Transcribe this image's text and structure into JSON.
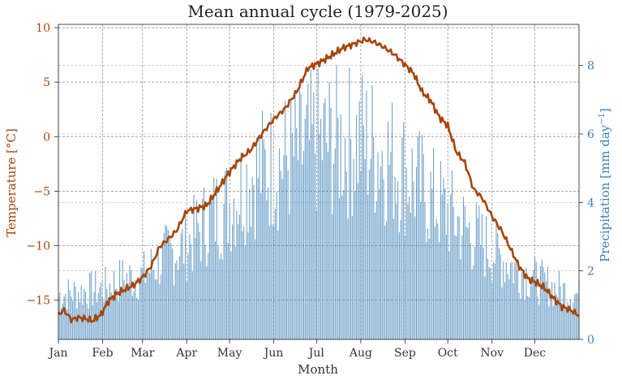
{
  "chart_data": {
    "type": "bar+line",
    "title": "Mean annual cycle (1979-2025)",
    "xlabel": "Month",
    "ylabel_left": "Temperature [°C]",
    "ylabel_right_main": "Precipitation [mm day",
    "ylabel_right_sup": "−1",
    "ylabel_right_end": "]",
    "month_labels": [
      "Jan",
      "Feb",
      "Mar",
      "Apr",
      "May",
      "Jun",
      "Jul",
      "Aug",
      "Sep",
      "Oct",
      "Nov",
      "Dec"
    ],
    "month_start_days": [
      1,
      32,
      60,
      91,
      121,
      152,
      182,
      213,
      244,
      274,
      305,
      335
    ],
    "x_range_days": [
      1,
      366
    ],
    "left_ticks": [
      10,
      5,
      0,
      -5,
      -10,
      -15
    ],
    "left_tick_labels": [
      "10",
      "5",
      "0",
      "−5",
      "−10",
      "−15"
    ],
    "left_ylim": [
      -18.6,
      10.3
    ],
    "right_ticks": [
      0,
      2,
      4,
      6,
      8
    ],
    "right_tick_labels": [
      "0",
      "2",
      "4",
      "6",
      "8"
    ],
    "right_ylim": [
      0,
      9.2
    ],
    "grid": true,
    "colors": {
      "temperature": "#a6460b",
      "precipitation": "#3a7fb5",
      "grid": "#888888"
    },
    "temperature_series": {
      "days": [
        1,
        5,
        10,
        15,
        20,
        25,
        31,
        36,
        42,
        48,
        54,
        60,
        66,
        72,
        78,
        84,
        91,
        98,
        105,
        112,
        120,
        128,
        136,
        144,
        152,
        160,
        168,
        176,
        184,
        192,
        200,
        208,
        216,
        222,
        228,
        236,
        244,
        250,
        256,
        262,
        268,
        274,
        280,
        286,
        292,
        298,
        305,
        312,
        318,
        324,
        330,
        336,
        342,
        348,
        354,
        360,
        366
      ],
      "values": [
        -16.3,
        -15.9,
        -16.8,
        -16.6,
        -16.7,
        -16.9,
        -16.3,
        -15.1,
        -14.4,
        -14.0,
        -13.6,
        -12.9,
        -11.9,
        -10.1,
        -9.4,
        -8.6,
        -6.8,
        -6.6,
        -6.3,
        -5.0,
        -3.4,
        -2.1,
        -1.2,
        0.3,
        1.6,
        2.6,
        4.1,
        6.3,
        6.8,
        7.4,
        8.1,
        8.5,
        8.9,
        8.7,
        8.3,
        7.6,
        6.6,
        5.8,
        4.1,
        3.3,
        1.8,
        1.0,
        -1.4,
        -2.4,
        -4.8,
        -5.6,
        -7.3,
        -8.7,
        -10.3,
        -11.9,
        -13.0,
        -13.4,
        -13.9,
        -14.8,
        -15.6,
        -15.9,
        -16.4
      ]
    },
    "precipitation_series": {
      "days": [
        1,
        16,
        32,
        46,
        60,
        75,
        91,
        106,
        121,
        136,
        152,
        167,
        182,
        197,
        213,
        228,
        244,
        259,
        274,
        289,
        305,
        320,
        335,
        350,
        366
      ],
      "values": [
        1.4,
        1.5,
        1.6,
        1.9,
        2.0,
        2.6,
        3.0,
        3.8,
        4.3,
        5.2,
        5.5,
        5.8,
        6.2,
        6.2,
        6.3,
        5.9,
        5.3,
        4.6,
        4.0,
        3.4,
        2.8,
        2.3,
        1.9,
        1.6,
        1.4
      ],
      "note": "daily bars; envelope values above, day-to-day variability drawn around them"
    }
  }
}
